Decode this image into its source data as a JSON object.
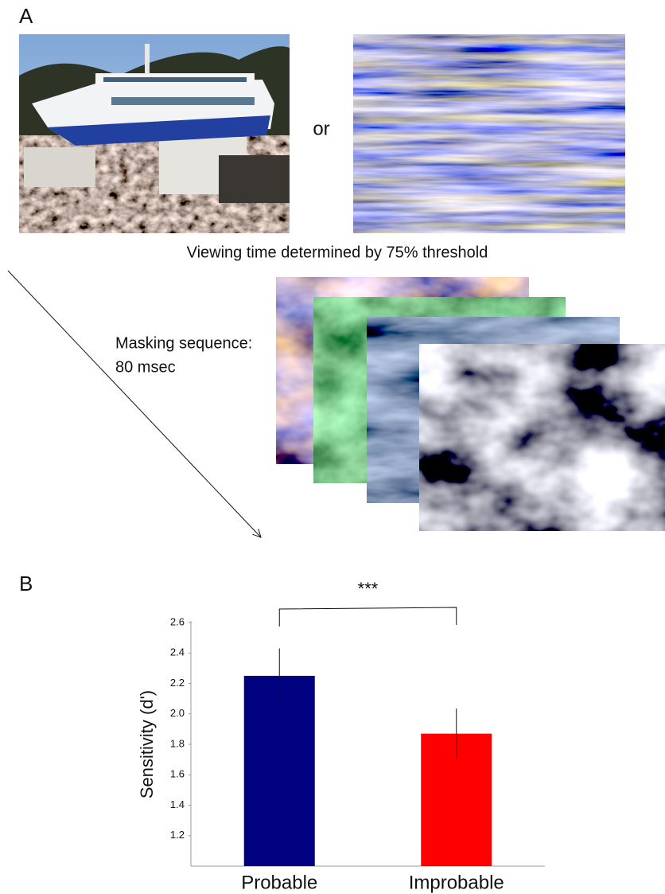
{
  "panel_a": {
    "label": "A",
    "connector": "or",
    "caption": "Viewing time determined by 75% threshold",
    "mask_label": [
      "Masking sequence:",
      "80 msec"
    ]
  },
  "panel_b": {
    "label": "B"
  },
  "chart_data": {
    "type": "bar",
    "categories": [
      "Probable",
      "Improbable"
    ],
    "values": [
      2.25,
      1.87
    ],
    "error": [
      0.18,
      0.165
    ],
    "colors": [
      "#000080",
      "#ff0000"
    ],
    "y_label": "Sensitivity (d')",
    "annotation": "***",
    "ylim": [
      1.0,
      2.6
    ],
    "yticks": [
      1.2,
      1.4,
      1.6,
      1.8,
      {
        "value": 2,
        "label": "2.0"
      },
      2.2,
      2.4,
      2.6
    ]
  }
}
